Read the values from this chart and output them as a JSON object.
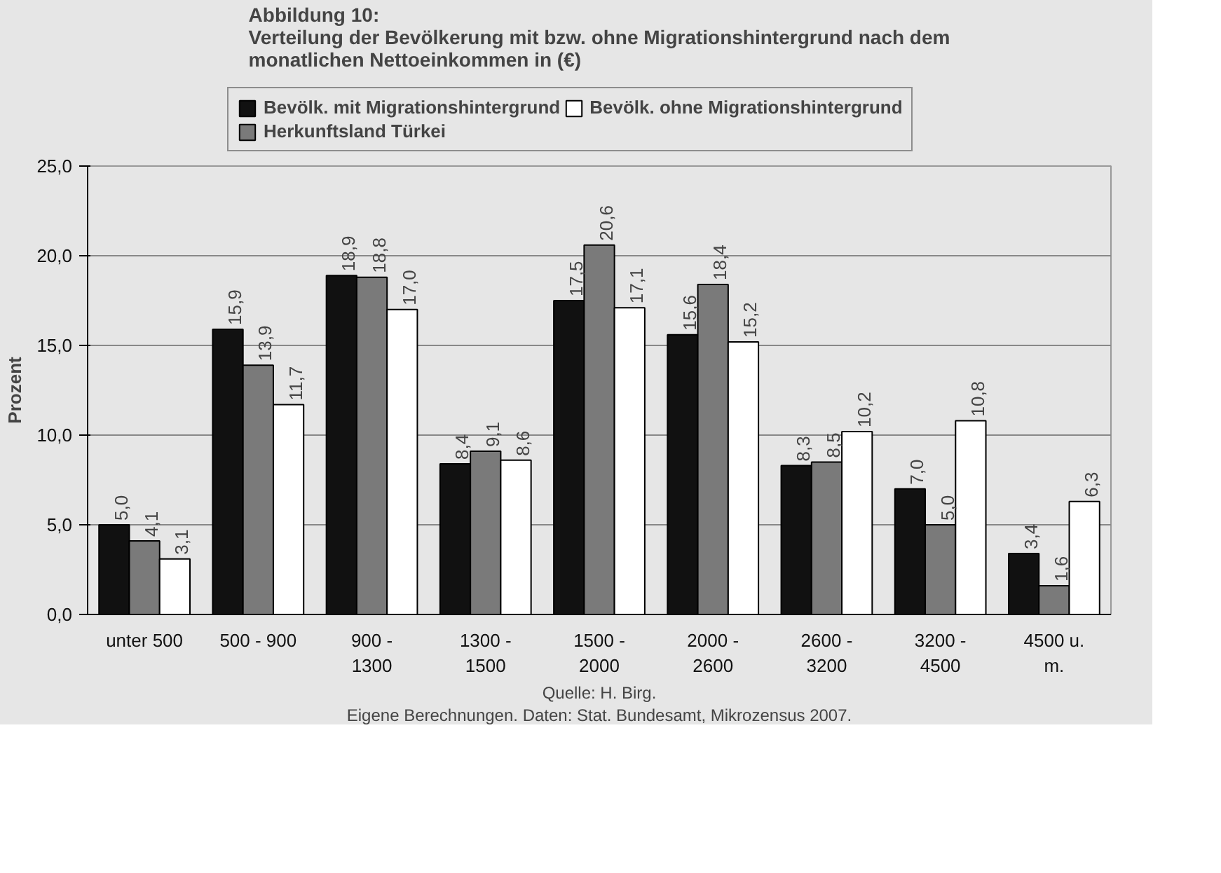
{
  "chart_data": {
    "type": "bar",
    "title": "Abbildung 10:\nVerteilung der Bevölkerung mit bzw. ohne Migrationshintergrund nach dem\nmonatlichen Nettoeinkommen in (€)",
    "ylabel": "Prozent",
    "categories": [
      "unter 500",
      "500 - 900",
      "900 - 1300",
      "1300 - 1500",
      "1500 - 2000",
      "2000 - 2600",
      "2600 - 3200",
      "3200 - 4500",
      "4500 u. m."
    ],
    "series": [
      {
        "name": "Bevölk. mit Migrationshintergrund",
        "color": "#111111",
        "values": [
          5.0,
          15.9,
          18.9,
          8.4,
          17.5,
          15.6,
          8.3,
          7.0,
          3.4
        ],
        "value_labels": [
          "5,0",
          "15,9",
          "18,9",
          "8,4",
          "17,5",
          "15,6",
          "8,3",
          "7,0",
          "3,4"
        ]
      },
      {
        "name": "Herkunftsland Türkei",
        "color": "#7a7a7a",
        "values": [
          4.1,
          13.9,
          18.8,
          9.1,
          20.6,
          18.4,
          8.5,
          5.0,
          1.6
        ],
        "value_labels": [
          "4,1",
          "13,9",
          "18,8",
          "9,1",
          "20,6",
          "18,4",
          "8,5",
          "5,0",
          "1,6"
        ]
      },
      {
        "name": "Bevölk. ohne Migrationshintergrund",
        "color": "#ffffff",
        "values": [
          3.1,
          11.7,
          17.0,
          8.6,
          17.1,
          15.2,
          10.2,
          10.8,
          6.3
        ],
        "value_labels": [
          "3,1",
          "11,7",
          "17,0",
          "8,6",
          "17,1",
          "15,2",
          "10,2",
          "10,8",
          "6,3"
        ]
      }
    ],
    "ylim": [
      0,
      25
    ],
    "yticks": [
      {
        "value": 0,
        "label": "0,0"
      },
      {
        "value": 5,
        "label": "5,0"
      },
      {
        "value": 10,
        "label": "10,0"
      },
      {
        "value": 15,
        "label": "15,0"
      },
      {
        "value": 20,
        "label": "20,0"
      },
      {
        "value": 25,
        "label": "25,0"
      }
    ],
    "grid": "y",
    "legend": "top",
    "data_labels": true,
    "annotations": [
      "Quelle: H. Birg.",
      "Eigene Berechnungen. Daten: Stat. Bundesamt, Mikrozensus 2007."
    ]
  }
}
